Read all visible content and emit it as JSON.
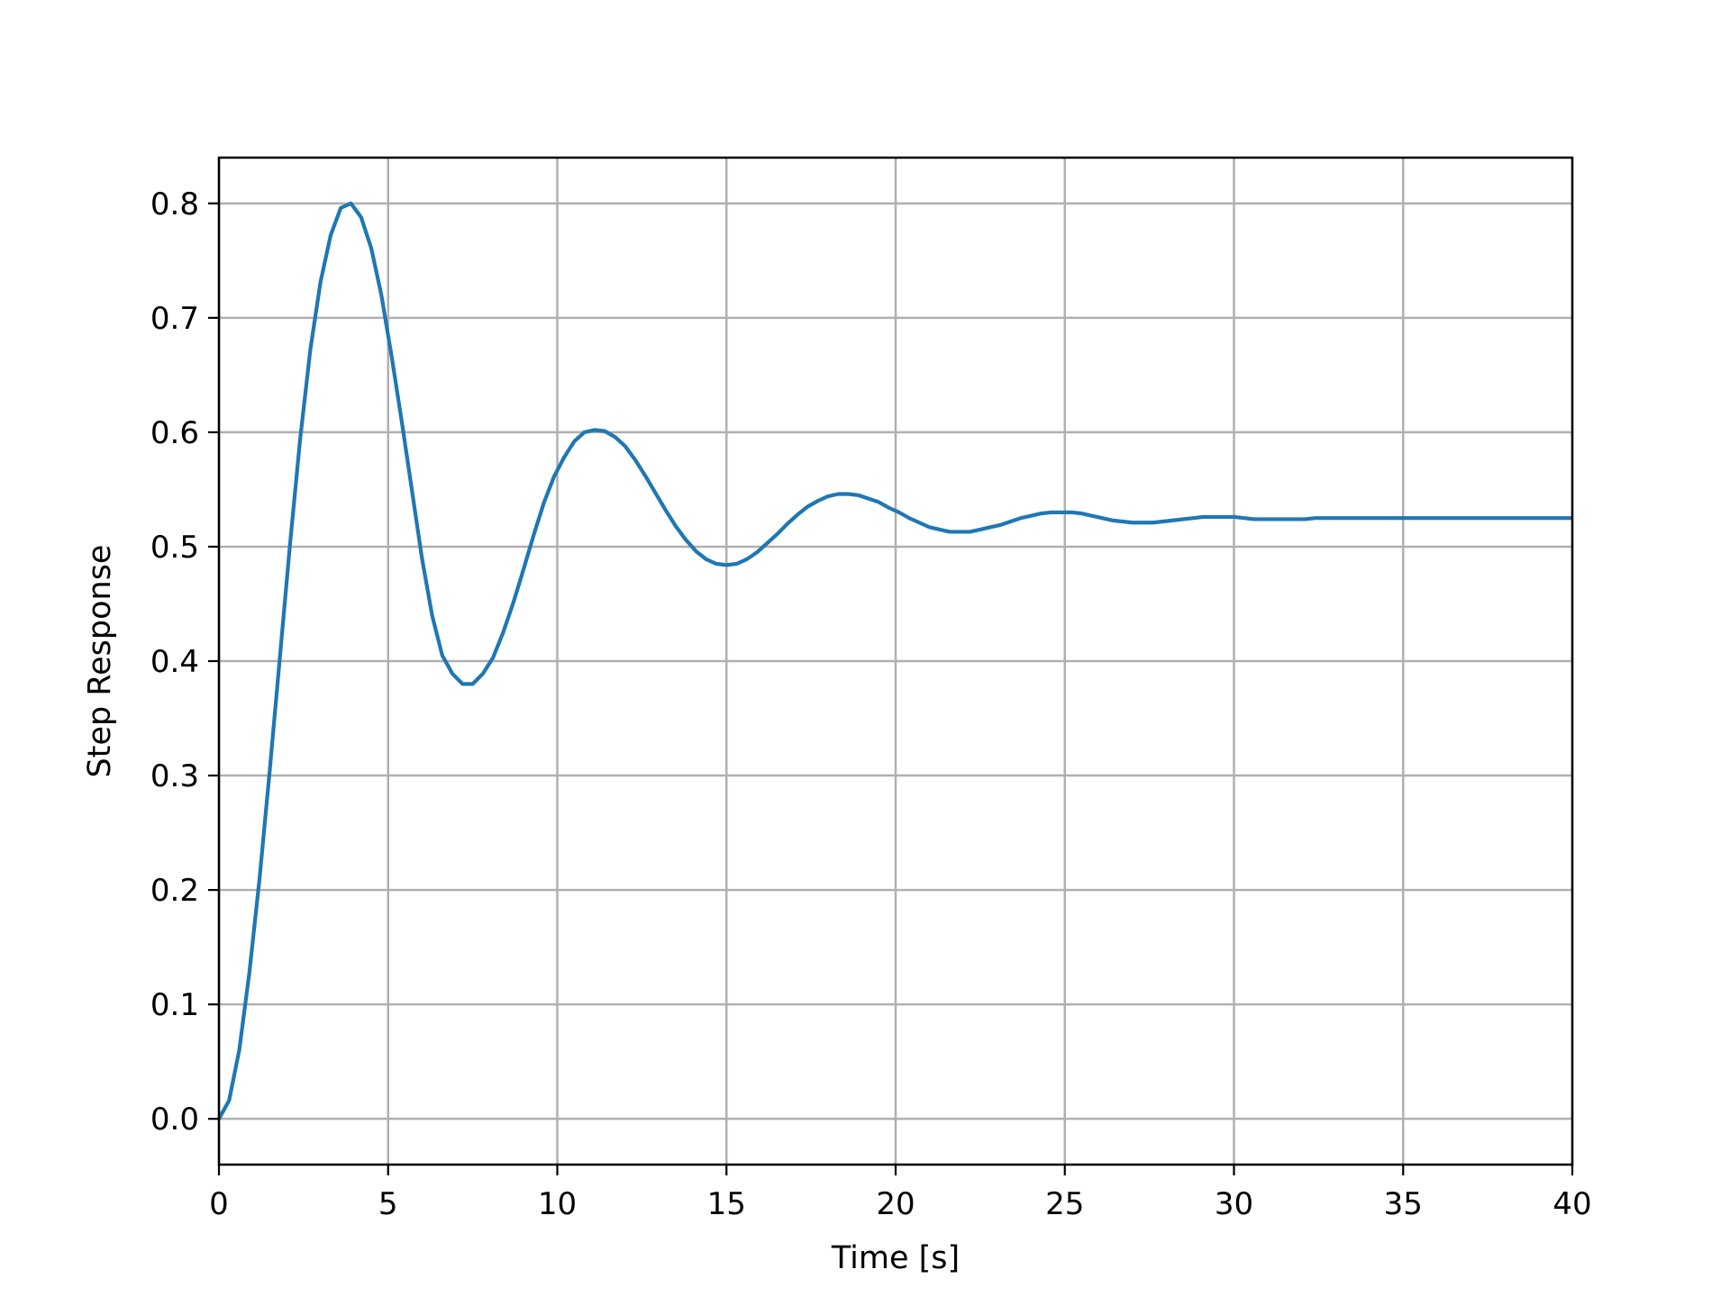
{
  "chart_data": {
    "type": "line",
    "title": "",
    "xlabel": "Time [s]",
    "ylabel": "Step Response",
    "xlim": [
      0,
      40
    ],
    "ylim": [
      -0.04,
      0.84
    ],
    "grid": true,
    "xticks": [
      0,
      5,
      10,
      15,
      20,
      25,
      30,
      35,
      40
    ],
    "xtick_labels": [
      "0",
      "5",
      "10",
      "15",
      "20",
      "25",
      "30",
      "35",
      "40"
    ],
    "yticks": [
      0.0,
      0.1,
      0.2,
      0.3,
      0.4,
      0.5,
      0.6,
      0.7,
      0.8
    ],
    "ytick_labels": [
      "0.0",
      "0.1",
      "0.2",
      "0.3",
      "0.4",
      "0.5",
      "0.6",
      "0.7",
      "0.8"
    ],
    "series": [
      {
        "color": "#1f77b4",
        "x": [
          0.0,
          0.3,
          0.6,
          0.9,
          1.2,
          1.5,
          1.8,
          2.1,
          2.4,
          2.7,
          3.0,
          3.3,
          3.6,
          3.9,
          4.2,
          4.5,
          4.8,
          5.1,
          5.4,
          5.7,
          6.0,
          6.3,
          6.6,
          6.9,
          7.2,
          7.5,
          7.8,
          8.1,
          8.4,
          8.7,
          9.0,
          9.3,
          9.6,
          9.9,
          10.2,
          10.5,
          10.8,
          11.1,
          11.4,
          11.7,
          12.0,
          12.3,
          12.6,
          12.9,
          13.2,
          13.5,
          13.8,
          14.1,
          14.4,
          14.7,
          15.0,
          15.3,
          15.6,
          15.9,
          16.2,
          16.5,
          16.8,
          17.1,
          17.4,
          17.7,
          18.0,
          18.3,
          18.6,
          18.9,
          19.2,
          19.5,
          19.8,
          20.1,
          20.4,
          20.7,
          21.0,
          21.3,
          21.6,
          21.9,
          22.2,
          22.5,
          22.8,
          23.1,
          23.4,
          23.7,
          24.0,
          24.3,
          24.6,
          24.9,
          25.2,
          25.5,
          25.8,
          26.1,
          26.4,
          26.7,
          27.0,
          27.3,
          27.6,
          27.9,
          28.2,
          28.5,
          28.8,
          29.1,
          29.4,
          29.7,
          30.0,
          30.3,
          30.6,
          30.9,
          31.2,
          31.5,
          31.8,
          32.1,
          32.4,
          32.7,
          33.0,
          33.3,
          33.6,
          33.9,
          34.2,
          34.5,
          34.8,
          35.1,
          35.4,
          35.7,
          36.0,
          36.3,
          36.6,
          36.9,
          37.2,
          37.5,
          37.8,
          38.1,
          38.4,
          38.7,
          39.0,
          39.3,
          39.6,
          39.9,
          40.0
        ],
        "y": [
          0.0,
          0.016,
          0.06,
          0.128,
          0.21,
          0.304,
          0.403,
          0.502,
          0.594,
          0.672,
          0.731,
          0.772,
          0.796,
          0.8,
          0.788,
          0.761,
          0.72,
          0.667,
          0.61,
          0.55,
          0.49,
          0.44,
          0.405,
          0.389,
          0.38,
          0.38,
          0.389,
          0.403,
          0.425,
          0.451,
          0.48,
          0.51,
          0.538,
          0.561,
          0.578,
          0.592,
          0.6,
          0.602,
          0.601,
          0.596,
          0.588,
          0.576,
          0.562,
          0.547,
          0.532,
          0.518,
          0.506,
          0.496,
          0.489,
          0.485,
          0.484,
          0.485,
          0.489,
          0.495,
          0.503,
          0.511,
          0.52,
          0.528,
          0.535,
          0.54,
          0.544,
          0.546,
          0.546,
          0.545,
          0.542,
          0.539,
          0.534,
          0.53,
          0.525,
          0.521,
          0.517,
          0.515,
          0.513,
          0.513,
          0.513,
          0.515,
          0.517,
          0.519,
          0.522,
          0.525,
          0.527,
          0.529,
          0.53,
          0.53,
          0.53,
          0.529,
          0.527,
          0.525,
          0.523,
          0.522,
          0.521,
          0.521,
          0.521,
          0.522,
          0.523,
          0.524,
          0.525,
          0.526,
          0.526,
          0.526,
          0.526,
          0.525,
          0.524,
          0.524,
          0.524,
          0.524,
          0.524,
          0.524,
          0.525,
          0.525,
          0.525,
          0.525,
          0.525,
          0.525,
          0.525,
          0.525,
          0.525,
          0.525,
          0.525,
          0.525,
          0.525,
          0.525,
          0.525,
          0.525,
          0.525,
          0.525,
          0.525,
          0.525,
          0.525,
          0.525,
          0.525,
          0.525,
          0.525,
          0.525,
          0.525
        ]
      }
    ]
  }
}
